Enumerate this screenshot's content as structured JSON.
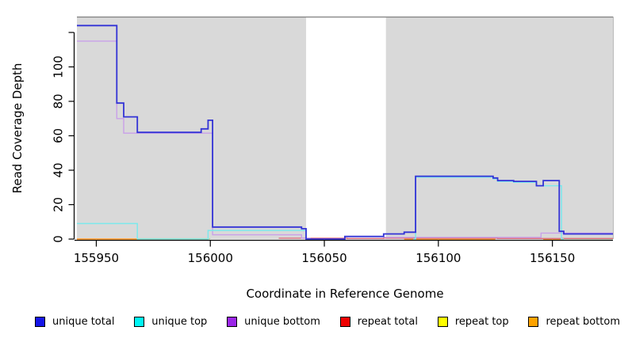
{
  "chart_data": {
    "type": "line",
    "subtype": "step-post",
    "title": "",
    "xlabel": "Coordinate in Reference Genome",
    "ylabel": "Read Coverage Depth",
    "xlim": [
      155941,
      156177
    ],
    "ylim": [
      0,
      129
    ],
    "x_ticks": [
      155950,
      156000,
      156050,
      156100,
      156150
    ],
    "y_ticks": [
      0,
      20,
      40,
      60,
      80,
      100
    ],
    "y_ticks_unlabeled": [
      120
    ],
    "plot_background": "#d9d9d9",
    "masked_region": {
      "x_start": 156042,
      "x_end": 156077,
      "color": "#ffffff"
    },
    "grid": "off",
    "legend_position": "bottom",
    "series": [
      {
        "name": "repeat bottom",
        "legend_color": "#ffa300",
        "line_color": "#ff9d2e",
        "line_width": 1.8,
        "segments": [
          [
            [
              155941,
              0
            ],
            [
              155999,
              0
            ]
          ],
          [
            [
              156085,
              0
            ],
            [
              156125,
              0
            ]
          ],
          [
            [
              156146,
              0
            ],
            [
              156155,
              0
            ]
          ]
        ]
      },
      {
        "name": "repeat top",
        "legend_color": "#ffff00",
        "line_color": "#a9d8a2",
        "line_width": 1.5,
        "segments": [
          [
            [
              155968,
              0.2
            ],
            [
              156000,
              0.2
            ]
          ],
          [
            [
              156155,
              0.2
            ],
            [
              156177,
              0.2
            ]
          ]
        ]
      },
      {
        "name": "repeat total",
        "legend_color": "#f00000",
        "line_color": "#d96775",
        "line_width": 1.3,
        "segments": [
          [
            [
              156030,
              0.5
            ],
            [
              156060,
              0.3
            ],
            [
              156076,
              0.5
            ],
            [
              156126,
              0.3
            ],
            [
              156177,
              0.3
            ]
          ]
        ]
      },
      {
        "name": "unique bottom",
        "legend_color": "#9b26e8",
        "line_color": "#c9a0e9",
        "line_width": 1.4,
        "segments": [
          [
            [
              155941,
              115
            ],
            [
              155959,
              70
            ],
            [
              155962,
              61.5
            ],
            [
              155999,
              61.5
            ],
            [
              156001,
              2.5
            ],
            [
              156040,
              0.5
            ],
            [
              156044,
              0.5
            ]
          ],
          [
            [
              156076,
              1
            ],
            [
              156145,
              3.5
            ],
            [
              156177,
              3.5
            ]
          ]
        ]
      },
      {
        "name": "unique top",
        "legend_color": "#00f5f5",
        "line_color": "#7ce9ec",
        "line_width": 1.5,
        "segments": [
          [
            [
              155941,
              9
            ],
            [
              155968,
              0
            ],
            [
              155999,
              5
            ],
            [
              156042,
              0
            ],
            [
              156044,
              0
            ]
          ],
          [
            [
              156089,
              0
            ],
            [
              156090,
              36
            ],
            [
              156124,
              35
            ],
            [
              156126,
              33.5
            ],
            [
              156133,
              33
            ],
            [
              156143,
              31
            ],
            [
              156154,
              0
            ],
            [
              156155,
              0
            ]
          ]
        ]
      },
      {
        "name": "unique total",
        "legend_color": "#1515e8",
        "line_color": "#3333d6",
        "line_width": 1.8,
        "segments": [
          [
            [
              155941,
              124
            ],
            [
              155959,
              79
            ],
            [
              155962,
              71
            ],
            [
              155968,
              62
            ],
            [
              155996,
              64
            ],
            [
              155999,
              69
            ],
            [
              156001,
              7
            ],
            [
              156040,
              6
            ],
            [
              156042,
              0
            ],
            [
              156059,
              1.5
            ],
            [
              156076,
              3
            ],
            [
              156085,
              4
            ],
            [
              156090,
              36.5
            ],
            [
              156124,
              35.5
            ],
            [
              156126,
              34
            ],
            [
              156133,
              33.5
            ],
            [
              156143,
              31
            ],
            [
              156146,
              34
            ],
            [
              156153,
              4.5
            ],
            [
              156155,
              3
            ],
            [
              156177,
              3
            ]
          ]
        ]
      }
    ]
  },
  "legend": {
    "items": [
      {
        "label": "unique total",
        "color": "#1515e8"
      },
      {
        "label": "unique top",
        "color": "#00f5f5"
      },
      {
        "label": "unique bottom",
        "color": "#9b26e8"
      },
      {
        "label": "repeat total",
        "color": "#f00000"
      },
      {
        "label": "repeat top",
        "color": "#ffff00"
      },
      {
        "label": "repeat bottom",
        "color": "#ffa300"
      }
    ]
  }
}
